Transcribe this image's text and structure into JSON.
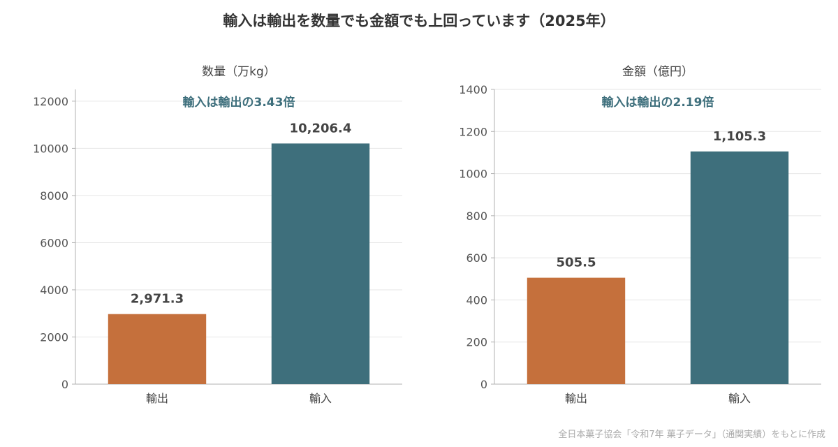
{
  "title": "輸入は輸出を数量でも金額でも上回っています（2025年）",
  "source": "全日本菓子協会「令和7年 菓子データ」（通関実績）をもとに作成",
  "colors": {
    "export": "#c5703c",
    "import": "#3e6f7c",
    "annotation": "#3e6f7c",
    "grid": "#e6e6e6",
    "axis": "#b0b0b0"
  },
  "chart_data": [
    {
      "type": "bar",
      "title": "数量（万kg）",
      "annotation": "輸入は輸出の3.43倍",
      "categories": [
        "輸出",
        "輸入"
      ],
      "values": [
        2971.3,
        10206.4
      ],
      "value_labels": [
        "2,971.3",
        "10,206.4"
      ],
      "yticks": [
        0,
        2000,
        4000,
        6000,
        8000,
        10000,
        12000
      ],
      "ylim": [
        0,
        12500
      ],
      "grid": true,
      "xlabel": "",
      "ylabel": ""
    },
    {
      "type": "bar",
      "title": "金額（億円）",
      "annotation": "輸入は輸出の2.19倍",
      "categories": [
        "輸出",
        "輸入"
      ],
      "values": [
        505.5,
        1105.3
      ],
      "value_labels": [
        "505.5",
        "1,105.3"
      ],
      "yticks": [
        0,
        200,
        400,
        600,
        800,
        1000,
        1200,
        1400
      ],
      "ylim": [
        0,
        1400
      ],
      "grid": true,
      "xlabel": "",
      "ylabel": ""
    }
  ]
}
